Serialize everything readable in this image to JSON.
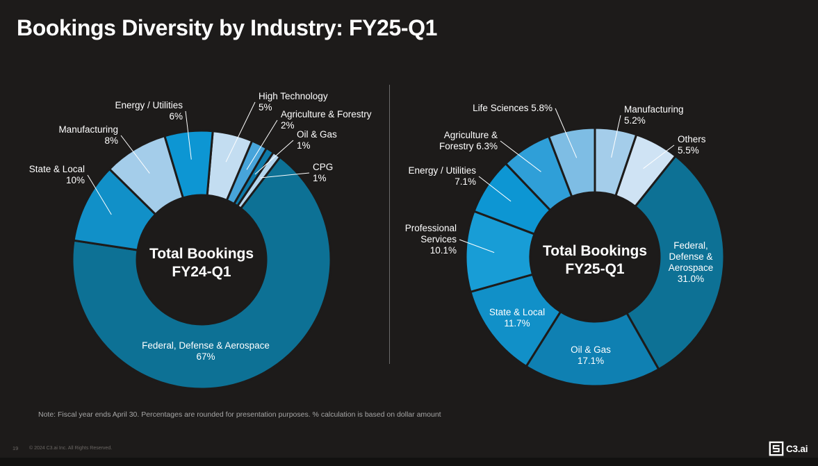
{
  "title": "Bookings Diversity by Industry: FY25-Q1",
  "note": "Note: Fiscal year ends April 30. Percentages are rounded for presentation purposes. % calculation is based on dollar amount",
  "footer": {
    "page_number": "19",
    "copyright": "© 2024 C3.ai Inc. All Rights Reserved.",
    "logo_text": "C3.ai"
  },
  "colors": {
    "background": "#1d1b1a",
    "divider": "#6b6b6b",
    "leader_line": "#ffffff"
  },
  "chart_data": [
    {
      "id": "fy24",
      "type": "pie",
      "variant": "donut",
      "center_label": "Total Bookings\nFY24-Q1",
      "unit": "%",
      "start_angle_deg": 5,
      "direction": "clockwise-from-12",
      "slices": [
        {
          "category": "High Technology",
          "value": 5,
          "label": "High Technology\n5%",
          "color": "#c3ddf1"
        },
        {
          "category": "Agriculture & Forestry",
          "value": 2,
          "label": "Agriculture & Forestry\n2%",
          "color": "#47a4da"
        },
        {
          "category": "Oil & Gas",
          "value": 1,
          "label": "Oil & Gas\n1%",
          "color": "#0e7aa9"
        },
        {
          "category": "CPG",
          "value": 1,
          "label": "CPG\n1%",
          "color": "#b5d6ee"
        },
        {
          "category": "Federal, Defense & Aerospace",
          "value": 67,
          "label": "Federal, Defense & Aerospace\n67%",
          "color": "#0d7195"
        },
        {
          "category": "State & Local",
          "value": 10,
          "label": "State & Local\n10%",
          "color": "#1190c8"
        },
        {
          "category": "Manufacturing",
          "value": 8,
          "label": "Manufacturing\n8%",
          "color": "#a4cdea"
        },
        {
          "category": "Energy / Utilities",
          "value": 6,
          "label": "Energy / Utilities\n6%",
          "color": "#0d96d3"
        }
      ]
    },
    {
      "id": "fy25",
      "type": "pie",
      "variant": "donut",
      "center_label": "Total Bookings\nFY25-Q1",
      "unit": "%",
      "start_angle_deg": 0,
      "direction": "clockwise-from-12",
      "slices": [
        {
          "category": "Manufacturing",
          "value": 5.2,
          "label": "Manufacturing\n5.2%",
          "color": "#a4cdea"
        },
        {
          "category": "Others",
          "value": 5.5,
          "label": "Others\n5.5%",
          "color": "#cfe3f4"
        },
        {
          "category": "Federal, Defense & Aerospace",
          "value": 31.0,
          "label": "Federal,\nDefense &\nAerospace\n31.0%",
          "color": "#0d7195"
        },
        {
          "category": "Oil & Gas",
          "value": 17.1,
          "label": "Oil & Gas\n17.1%",
          "color": "#0f80b2"
        },
        {
          "category": "State & Local",
          "value": 11.7,
          "label": "State & Local\n11.7%",
          "color": "#1190c8"
        },
        {
          "category": "Professional Services",
          "value": 10.1,
          "label": "Professional\nServices\n10.1%",
          "color": "#189dd6"
        },
        {
          "category": "Energy / Utilities",
          "value": 7.1,
          "label": "Energy / Utilities\n7.1%",
          "color": "#0d96d3"
        },
        {
          "category": "Agriculture & Forestry",
          "value": 6.3,
          "label": "Agriculture &\nForestry 6.3%",
          "color": "#2f9fd8"
        },
        {
          "category": "Life Sciences",
          "value": 5.8,
          "label": "Life Sciences 5.8%",
          "color": "#7ebde4"
        }
      ]
    }
  ]
}
